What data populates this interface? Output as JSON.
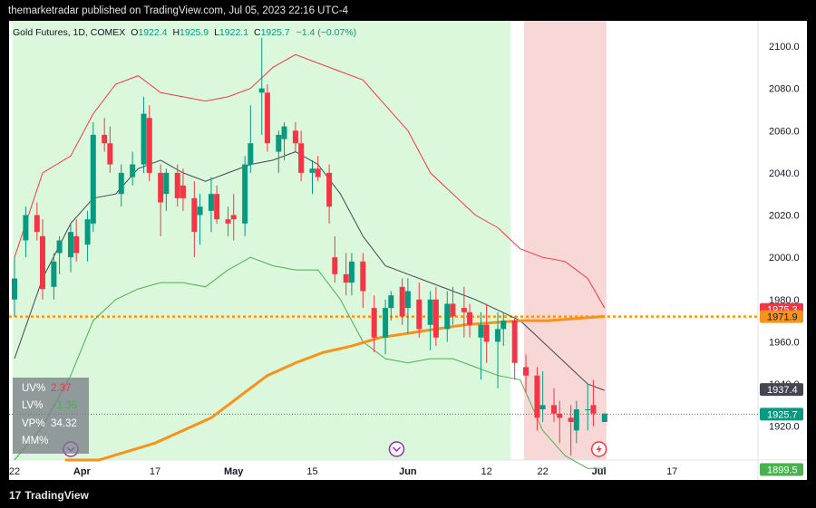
{
  "header": {
    "published_text": "themarketradar published on TradingView.com, Jul 05, 2023 22:16 UTC-4"
  },
  "footer": {
    "brand": "TradingView",
    "logo_glyph": "17"
  },
  "legend": {
    "symbol": "Gold Futures, 1D, COMEX",
    "o_label": "O",
    "o": "1922.4",
    "h_label": "H",
    "h": "1925.9",
    "l_label": "L",
    "l": "1922.1",
    "c_label": "C",
    "c": "1925.7",
    "change": "−1.4 (−0.07%)"
  },
  "indicator_box": {
    "rows": [
      {
        "label": "UV%",
        "value": "2.37",
        "color": "#f23645"
      },
      {
        "label": "LV%",
        "value": "−1.36",
        "color": "#4caf50"
      },
      {
        "label": "VP%",
        "value": "34.32",
        "color": "#ffffff"
      },
      {
        "label": "MM%",
        "value": "",
        "color": "#ffffff"
      }
    ]
  },
  "colors": {
    "background": "#ffffff",
    "up_candle": "#089981",
    "down_candle": "#f23645",
    "green_zone": "#dcf8dc",
    "red_zone": "#f8d7d7",
    "upper_band": "#f23645",
    "lower_band": "#4caf50",
    "middle_band": "#434651",
    "ma200": "#f7931a",
    "event_icon": "#9c27b0",
    "lightning_icon": "#f23645"
  },
  "chart_data": {
    "type": "candlestick",
    "x_tick_labels": [
      "22",
      "Apr",
      "17",
      "May",
      "15",
      "Jun",
      "12",
      "22",
      "Jul",
      "17"
    ],
    "y_tick_labels": [
      "1920.0",
      "1940.0",
      "1960.0",
      "1980.0",
      "2000.0",
      "2020.0",
      "2040.0",
      "2060.0",
      "2080.0",
      "2100.0"
    ],
    "y_ticks": [
      1920,
      1940,
      1960,
      1980,
      2000,
      2020,
      2040,
      2060,
      2080,
      2100
    ],
    "ylim": [
      1904,
      2112
    ],
    "x_domain": [
      0,
      116
    ],
    "x_tick_positions": [
      0,
      12,
      25,
      39,
      53,
      70,
      84,
      94,
      104,
      117
    ],
    "price_tags": [
      {
        "label": "1975.3",
        "value": 1975.3,
        "color": "#f23645"
      },
      {
        "label": "1971.9",
        "value": 1971.9,
        "color": "#f7931a"
      },
      {
        "label": "1937.4",
        "value": 1937.4,
        "color": "#434651"
      },
      {
        "label": "1925.7",
        "value": 1925.7,
        "color": "#089981"
      },
      {
        "label": "1899.5",
        "value": 1899.5,
        "color": "#4caf50"
      }
    ],
    "horizontal_lines": [
      {
        "name": "dotted orange level",
        "value": 1971.9,
        "color": "#f7931a",
        "style": "dotted"
      },
      {
        "name": "last price",
        "value": 1925.7,
        "color": "#089981",
        "style": "dotted"
      }
    ],
    "zones": [
      {
        "name": "green zone",
        "from": 0,
        "to": 88,
        "color": "#dcf8dc"
      },
      {
        "name": "red zone",
        "from": 91,
        "to": 105,
        "color": "#f8d7d7"
      }
    ],
    "event_markers": [
      {
        "x": 10,
        "type": "event"
      },
      {
        "x": 68,
        "type": "event"
      },
      {
        "x": 104,
        "type": "lightning"
      }
    ],
    "candles": [
      {
        "x": 0,
        "o": 1980,
        "h": 2000,
        "l": 1972,
        "c": 1990
      },
      {
        "x": 2,
        "o": 2008,
        "h": 2024,
        "l": 2000,
        "c": 2020
      },
      {
        "x": 4,
        "o": 2020,
        "h": 2026,
        "l": 2008,
        "c": 2012
      },
      {
        "x": 5,
        "o": 2010,
        "h": 2018,
        "l": 1980,
        "c": 1985
      },
      {
        "x": 7,
        "o": 1986,
        "h": 2002,
        "l": 1980,
        "c": 1998
      },
      {
        "x": 8,
        "o": 2002,
        "h": 2010,
        "l": 1992,
        "c": 2008
      },
      {
        "x": 10,
        "o": 2000,
        "h": 2016,
        "l": 1993,
        "c": 2012
      },
      {
        "x": 11,
        "o": 2010,
        "h": 2018,
        "l": 1998,
        "c": 2002
      },
      {
        "x": 13,
        "o": 2006,
        "h": 2022,
        "l": 1998,
        "c": 2018
      },
      {
        "x": 14,
        "o": 2016,
        "h": 2064,
        "l": 2012,
        "c": 2058
      },
      {
        "x": 16,
        "o": 2058,
        "h": 2066,
        "l": 2050,
        "c": 2054
      },
      {
        "x": 17,
        "o": 2054,
        "h": 2062,
        "l": 2040,
        "c": 2044
      },
      {
        "x": 19,
        "o": 2030,
        "h": 2044,
        "l": 2024,
        "c": 2040
      },
      {
        "x": 21,
        "o": 2038,
        "h": 2050,
        "l": 2034,
        "c": 2044
      },
      {
        "x": 23,
        "o": 2044,
        "h": 2076,
        "l": 2040,
        "c": 2068
      },
      {
        "x": 24,
        "o": 2066,
        "h": 2072,
        "l": 2036,
        "c": 2040
      },
      {
        "x": 26,
        "o": 2040,
        "h": 2044,
        "l": 2010,
        "c": 2026
      },
      {
        "x": 27,
        "o": 2030,
        "h": 2042,
        "l": 2022,
        "c": 2040
      },
      {
        "x": 29,
        "o": 2040,
        "h": 2044,
        "l": 2024,
        "c": 2028
      },
      {
        "x": 30,
        "o": 2034,
        "h": 2042,
        "l": 2022,
        "c": 2028
      },
      {
        "x": 32,
        "o": 2028,
        "h": 2036,
        "l": 2000,
        "c": 2012
      },
      {
        "x": 33,
        "o": 2020,
        "h": 2030,
        "l": 2006,
        "c": 2024
      },
      {
        "x": 35,
        "o": 2022,
        "h": 2038,
        "l": 2012,
        "c": 2030
      },
      {
        "x": 36,
        "o": 2030,
        "h": 2034,
        "l": 2016,
        "c": 2018
      },
      {
        "x": 38,
        "o": 2018,
        "h": 2024,
        "l": 2010,
        "c": 2016
      },
      {
        "x": 39,
        "o": 2020,
        "h": 2030,
        "l": 2008,
        "c": 2018
      },
      {
        "x": 41,
        "o": 2016,
        "h": 2048,
        "l": 2010,
        "c": 2044
      },
      {
        "x": 42,
        "o": 2044,
        "h": 2072,
        "l": 2040,
        "c": 2054
      },
      {
        "x": 44,
        "o": 2078,
        "h": 2104,
        "l": 2058,
        "c": 2080
      },
      {
        "x": 45,
        "o": 2078,
        "h": 2082,
        "l": 2050,
        "c": 2054
      },
      {
        "x": 47,
        "o": 2050,
        "h": 2060,
        "l": 2040,
        "c": 2058
      },
      {
        "x": 48,
        "o": 2056,
        "h": 2064,
        "l": 2046,
        "c": 2062
      },
      {
        "x": 50,
        "o": 2060,
        "h": 2064,
        "l": 2050,
        "c": 2054
      },
      {
        "x": 51,
        "o": 2054,
        "h": 2060,
        "l": 2036,
        "c": 2040
      },
      {
        "x": 53,
        "o": 2040,
        "h": 2046,
        "l": 2030,
        "c": 2042
      },
      {
        "x": 54,
        "o": 2042,
        "h": 2048,
        "l": 2036,
        "c": 2038
      },
      {
        "x": 56,
        "o": 2040,
        "h": 2044,
        "l": 2016,
        "c": 2024
      },
      {
        "x": 57,
        "o": 2000,
        "h": 2010,
        "l": 1988,
        "c": 1992
      },
      {
        "x": 59,
        "o": 1992,
        "h": 2002,
        "l": 1982,
        "c": 1988
      },
      {
        "x": 60,
        "o": 1988,
        "h": 2002,
        "l": 1982,
        "c": 1998
      },
      {
        "x": 62,
        "o": 1998,
        "h": 2002,
        "l": 1976,
        "c": 1984
      },
      {
        "x": 64,
        "o": 1976,
        "h": 1982,
        "l": 1955,
        "c": 1962
      },
      {
        "x": 66,
        "o": 1962,
        "h": 1980,
        "l": 1954,
        "c": 1976
      },
      {
        "x": 67,
        "o": 1976,
        "h": 1984,
        "l": 1970,
        "c": 1982
      },
      {
        "x": 69,
        "o": 1986,
        "h": 1990,
        "l": 1968,
        "c": 1972
      },
      {
        "x": 70,
        "o": 1976,
        "h": 1990,
        "l": 1964,
        "c": 1984
      },
      {
        "x": 72,
        "o": 1980,
        "h": 1988,
        "l": 1962,
        "c": 1966
      },
      {
        "x": 74,
        "o": 1968,
        "h": 1984,
        "l": 1956,
        "c": 1980
      },
      {
        "x": 75,
        "o": 1980,
        "h": 1986,
        "l": 1958,
        "c": 1962
      },
      {
        "x": 77,
        "o": 1966,
        "h": 1984,
        "l": 1960,
        "c": 1978
      },
      {
        "x": 78,
        "o": 1978,
        "h": 1986,
        "l": 1968,
        "c": 1972
      },
      {
        "x": 80,
        "o": 1976,
        "h": 1986,
        "l": 1962,
        "c": 1974
      },
      {
        "x": 81,
        "o": 1974,
        "h": 1978,
        "l": 1962,
        "c": 1968
      },
      {
        "x": 83,
        "o": 1962,
        "h": 1974,
        "l": 1942,
        "c": 1968
      },
      {
        "x": 84,
        "o": 1968,
        "h": 1978,
        "l": 1950,
        "c": 1960
      },
      {
        "x": 86,
        "o": 1960,
        "h": 1974,
        "l": 1938,
        "c": 1966
      },
      {
        "x": 87,
        "o": 1966,
        "h": 1974,
        "l": 1958,
        "c": 1970
      },
      {
        "x": 89,
        "o": 1970,
        "h": 1972,
        "l": 1942,
        "c": 1950
      },
      {
        "x": 91,
        "o": 1948,
        "h": 1954,
        "l": 1936,
        "c": 1944
      },
      {
        "x": 93,
        "o": 1944,
        "h": 1948,
        "l": 1918,
        "c": 1924
      },
      {
        "x": 94,
        "o": 1928,
        "h": 1946,
        "l": 1922,
        "c": 1930
      },
      {
        "x": 96,
        "o": 1930,
        "h": 1938,
        "l": 1922,
        "c": 1926
      },
      {
        "x": 97,
        "o": 1926,
        "h": 1932,
        "l": 1912,
        "c": 1924
      },
      {
        "x": 99,
        "o": 1924,
        "h": 1930,
        "l": 1906,
        "c": 1922
      },
      {
        "x": 100,
        "o": 1918,
        "h": 1932,
        "l": 1912,
        "c": 1928
      },
      {
        "x": 102,
        "o": 1928,
        "h": 1940,
        "l": 1918,
        "c": 1928
      },
      {
        "x": 103,
        "o": 1930,
        "h": 1942,
        "l": 1920,
        "c": 1926
      },
      {
        "x": 105,
        "o": 1922,
        "h": 1926,
        "l": 1922,
        "c": 1926
      }
    ],
    "series": [
      {
        "name": "upper band",
        "color": "#f23645",
        "points": [
          [
            0,
            2000
          ],
          [
            5,
            2040
          ],
          [
            10,
            2048
          ],
          [
            14,
            2068
          ],
          [
            18,
            2082
          ],
          [
            22,
            2086
          ],
          [
            26,
            2078
          ],
          [
            30,
            2076
          ],
          [
            34,
            2074
          ],
          [
            38,
            2076
          ],
          [
            42,
            2080
          ],
          [
            46,
            2090
          ],
          [
            50,
            2096
          ],
          [
            54,
            2092
          ],
          [
            58,
            2088
          ],
          [
            62,
            2084
          ],
          [
            66,
            2072
          ],
          [
            70,
            2060
          ],
          [
            74,
            2040
          ],
          [
            78,
            2030
          ],
          [
            82,
            2020
          ],
          [
            86,
            2014
          ],
          [
            90,
            2004
          ],
          [
            94,
            2000
          ],
          [
            98,
            1998
          ],
          [
            102,
            1990
          ],
          [
            105,
            1976
          ]
        ]
      },
      {
        "name": "middle band",
        "color": "#434651",
        "points": [
          [
            0,
            1952
          ],
          [
            5,
            1990
          ],
          [
            10,
            2016
          ],
          [
            14,
            2028
          ],
          [
            18,
            2030
          ],
          [
            22,
            2042
          ],
          [
            26,
            2046
          ],
          [
            30,
            2040
          ],
          [
            34,
            2036
          ],
          [
            38,
            2040
          ],
          [
            42,
            2044
          ],
          [
            46,
            2046
          ],
          [
            50,
            2050
          ],
          [
            54,
            2044
          ],
          [
            58,
            2030
          ],
          [
            62,
            2010
          ],
          [
            66,
            1996
          ],
          [
            70,
            1992
          ],
          [
            74,
            1988
          ],
          [
            78,
            1984
          ],
          [
            82,
            1980
          ],
          [
            86,
            1975
          ],
          [
            90,
            1970
          ],
          [
            94,
            1960
          ],
          [
            98,
            1950
          ],
          [
            102,
            1940
          ],
          [
            105,
            1937
          ]
        ]
      },
      {
        "name": "lower band",
        "color": "#4caf50",
        "points": [
          [
            0,
            1904
          ],
          [
            5,
            1920
          ],
          [
            10,
            1944
          ],
          [
            14,
            1970
          ],
          [
            18,
            1980
          ],
          [
            22,
            1985
          ],
          [
            26,
            1988
          ],
          [
            30,
            1988
          ],
          [
            34,
            1986
          ],
          [
            38,
            1994
          ],
          [
            42,
            2000
          ],
          [
            46,
            1996
          ],
          [
            50,
            1994
          ],
          [
            54,
            1994
          ],
          [
            58,
            1980
          ],
          [
            62,
            1960
          ],
          [
            66,
            1952
          ],
          [
            70,
            1950
          ],
          [
            74,
            1952
          ],
          [
            78,
            1952
          ],
          [
            82,
            1948
          ],
          [
            86,
            1944
          ],
          [
            90,
            1942
          ],
          [
            94,
            1918
          ],
          [
            98,
            1906
          ],
          [
            102,
            1900
          ],
          [
            105,
            1900
          ]
        ]
      },
      {
        "name": "moving average",
        "color": "#f7931a",
        "points": [
          [
            9,
            1904
          ],
          [
            15,
            1904
          ],
          [
            20,
            1908
          ],
          [
            25,
            1912
          ],
          [
            30,
            1918
          ],
          [
            35,
            1924
          ],
          [
            40,
            1934
          ],
          [
            45,
            1944
          ],
          [
            50,
            1950
          ],
          [
            55,
            1955
          ],
          [
            60,
            1958
          ],
          [
            65,
            1962
          ],
          [
            70,
            1964
          ],
          [
            75,
            1966
          ],
          [
            80,
            1968
          ],
          [
            85,
            1969
          ],
          [
            90,
            1970
          ],
          [
            95,
            1970
          ],
          [
            100,
            1971
          ],
          [
            105,
            1972
          ]
        ]
      }
    ]
  }
}
